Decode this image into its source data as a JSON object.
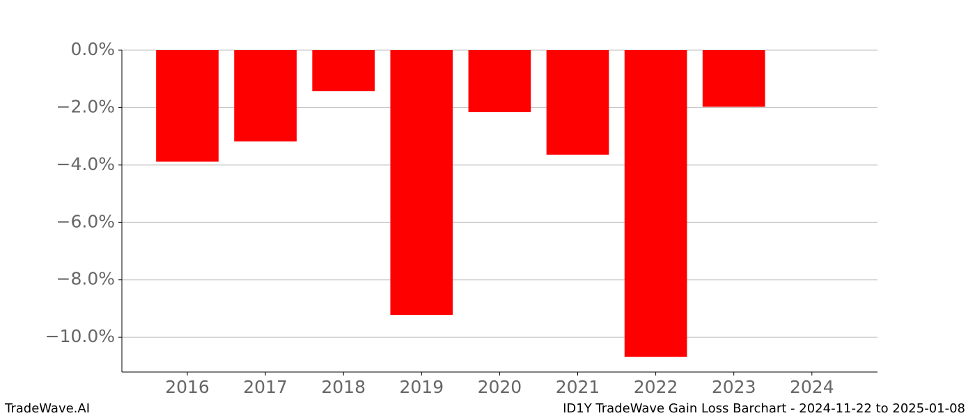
{
  "chart_data": {
    "type": "bar",
    "categories": [
      "2016",
      "2017",
      "2018",
      "2019",
      "2020",
      "2021",
      "2022",
      "2023",
      "2024"
    ],
    "values": [
      -3.88,
      -3.18,
      -1.43,
      -9.22,
      -2.16,
      -3.64,
      -10.68,
      -1.97,
      null
    ],
    "color": "#ff0000",
    "ylim": [
      -11.21,
      0
    ],
    "yticks": [
      {
        "value": 0,
        "label": "0.0%"
      },
      {
        "value": -2,
        "label": "−2.0%"
      },
      {
        "value": -4,
        "label": "−4.0%"
      },
      {
        "value": -6,
        "label": "−6.0%"
      },
      {
        "value": -8,
        "label": "−8.0%"
      },
      {
        "value": -10,
        "label": "−10.0%"
      }
    ],
    "grid": true,
    "footer_left": "TradeWave.AI",
    "footer_right": "ID1Y TradeWave Gain Loss Barchart - 2024-11-22 to 2025-01-08"
  }
}
